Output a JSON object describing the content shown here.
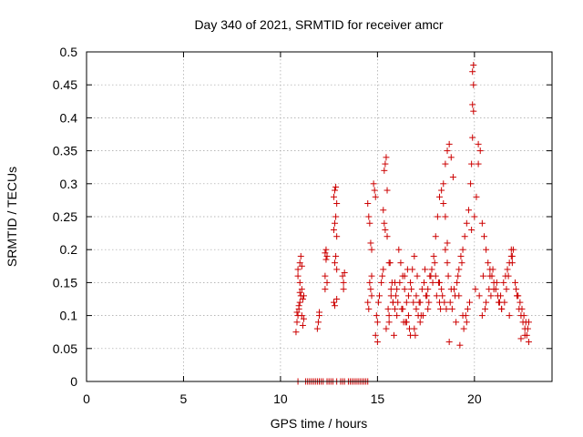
{
  "chart_data": {
    "type": "scatter",
    "title": "Day 340 of 2021, SRMTID for receiver amcr",
    "xlabel": "GPS time / hours",
    "ylabel": "SRMTID / TECUs",
    "xlim": [
      0,
      24
    ],
    "ylim": [
      0,
      0.5
    ],
    "xticks": [
      0,
      5,
      10,
      15,
      20
    ],
    "xtick_labels": [
      "0",
      "5",
      "10",
      "15",
      "20"
    ],
    "yticks": [
      0,
      0.05,
      0.1,
      0.15,
      0.2,
      0.25,
      0.3,
      0.35,
      0.4,
      0.45,
      0.5
    ],
    "ytick_labels": [
      "0",
      "0.05",
      "0.1",
      "0.15",
      "0.2",
      "0.25",
      "0.3",
      "0.35",
      "0.4",
      "0.45",
      "0.5"
    ],
    "grid": true,
    "marker": "+",
    "color": "#cc0000",
    "series": [
      {
        "name": "SRMTID",
        "x": [
          10.8,
          10.85,
          10.9,
          10.95,
          11.0,
          11.05,
          11.1,
          11.15,
          11.2,
          10.9,
          11.0,
          11.05,
          11.1,
          10.85,
          10.95,
          11.0,
          11.1,
          11.15,
          11.2,
          10.9,
          11.0,
          11.9,
          11.95,
          12.0,
          12.0,
          12.3,
          12.35,
          12.4,
          12.3,
          12.35,
          12.4,
          12.3,
          12.75,
          12.8,
          12.85,
          12.9,
          12.75,
          12.8,
          12.85,
          12.9,
          12.8,
          12.85,
          12.9,
          12.75,
          12.8,
          12.9,
          13.2,
          13.25,
          13.3,
          13.25,
          14.5,
          14.55,
          14.6,
          14.65,
          14.7,
          14.6,
          14.65,
          14.7,
          14.5,
          14.55,
          14.7,
          14.8,
          14.85,
          14.9,
          14.95,
          15.0,
          14.9,
          15.0,
          15.05,
          15.1,
          15.2,
          15.25,
          15.3,
          15.35,
          15.4,
          15.45,
          15.5,
          15.3,
          15.35,
          15.4,
          15.5,
          15.6,
          15.7,
          15.8,
          15.9,
          16.0,
          15.6,
          15.7,
          15.9,
          16.1,
          16.2,
          16.3,
          16.4,
          16.5,
          16.6,
          16.7,
          16.8,
          16.9,
          17.0,
          16.3,
          16.5,
          16.7,
          16.9,
          17.1,
          17.2,
          17.3,
          17.4,
          17.5,
          17.6,
          17.7,
          17.8,
          17.9,
          18.0,
          18.1,
          18.2,
          18.3,
          18.4,
          18.5,
          18.6,
          18.7,
          18.8,
          18.9,
          18.4,
          18.5,
          18.6,
          18.5,
          18.6,
          18.65,
          18.3,
          18.2,
          19.0,
          19.1,
          19.2,
          19.3,
          19.4,
          19.5,
          19.6,
          19.7,
          19.8,
          19.85,
          19.9,
          19.95,
          19.9,
          19.95,
          19.9,
          19.95,
          19.85,
          20.0,
          20.1,
          20.2,
          20.3,
          20.4,
          20.5,
          20.6,
          20.7,
          20.8,
          20.9,
          21.0,
          21.1,
          21.2,
          21.3,
          21.4,
          21.5,
          21.6,
          21.7,
          21.8,
          21.9,
          22.0,
          22.1,
          22.2,
          22.3,
          22.4,
          22.5,
          22.6,
          22.7,
          22.8,
          22.35,
          22.45,
          22.55,
          22.65,
          22.75,
          22.4,
          22.6,
          22.8,
          21.9,
          21.95,
          20.8,
          20.2,
          15.6,
          15.8,
          16.0,
          16.4,
          16.6,
          17.0,
          17.2,
          17.6,
          18.0,
          18.2,
          18.8,
          19.2,
          19.4,
          19.6,
          20.4,
          20.6,
          21.0,
          21.4,
          21.8,
          22.2,
          15.65,
          15.75,
          16.05,
          16.25,
          16.45,
          16.85,
          17.05,
          17.45,
          17.85,
          18.05,
          18.45,
          18.85,
          19.05,
          19.45,
          19.65,
          20.05,
          20.45,
          20.85,
          21.25,
          21.65,
          15.55,
          15.95,
          16.15,
          16.55,
          16.75,
          17.15,
          17.35,
          17.55,
          17.75,
          17.95,
          18.15,
          18.35,
          18.55,
          18.75,
          18.95,
          19.15,
          19.35,
          19.55,
          19.75,
          20.25,
          20.55,
          20.75,
          20.95,
          21.15,
          21.35,
          21.55,
          21.75,
          21.95,
          22.15,
          22.25,
          15.45,
          15.85,
          16.35,
          16.65,
          16.95,
          17.25,
          17.65,
          18.25,
          18.7,
          19.25,
          10.9,
          11.3,
          11.4,
          11.5,
          11.6,
          11.7,
          11.8,
          11.9,
          12.0,
          12.1,
          12.2,
          12.4,
          12.5,
          12.6,
          12.7,
          12.9,
          13.1,
          13.2,
          13.3,
          13.5,
          13.6,
          13.7,
          13.8,
          13.9,
          14.0,
          14.1,
          14.2,
          14.3,
          14.4,
          14.5
        ],
        "y": [
          0.075,
          0.09,
          0.1,
          0.11,
          0.12,
          0.13,
          0.1,
          0.085,
          0.095,
          0.17,
          0.18,
          0.19,
          0.175,
          0.105,
          0.115,
          0.135,
          0.14,
          0.125,
          0.13,
          0.16,
          0.15,
          0.08,
          0.09,
          0.1,
          0.105,
          0.195,
          0.2,
          0.15,
          0.16,
          0.185,
          0.19,
          0.14,
          0.28,
          0.29,
          0.295,
          0.27,
          0.23,
          0.24,
          0.25,
          0.22,
          0.18,
          0.19,
          0.17,
          0.12,
          0.115,
          0.125,
          0.16,
          0.15,
          0.165,
          0.14,
          0.27,
          0.25,
          0.24,
          0.21,
          0.2,
          0.15,
          0.14,
          0.13,
          0.12,
          0.11,
          0.16,
          0.3,
          0.29,
          0.28,
          0.1,
          0.09,
          0.07,
          0.06,
          0.12,
          0.13,
          0.15,
          0.16,
          0.17,
          0.32,
          0.33,
          0.34,
          0.29,
          0.26,
          0.24,
          0.23,
          0.22,
          0.18,
          0.14,
          0.12,
          0.11,
          0.1,
          0.09,
          0.13,
          0.15,
          0.2,
          0.18,
          0.16,
          0.14,
          0.12,
          0.1,
          0.15,
          0.17,
          0.19,
          0.13,
          0.11,
          0.09,
          0.07,
          0.08,
          0.1,
          0.12,
          0.14,
          0.15,
          0.13,
          0.11,
          0.16,
          0.17,
          0.19,
          0.22,
          0.25,
          0.28,
          0.29,
          0.3,
          0.33,
          0.35,
          0.36,
          0.34,
          0.31,
          0.27,
          0.25,
          0.21,
          0.2,
          0.18,
          0.16,
          0.14,
          0.12,
          0.13,
          0.15,
          0.17,
          0.19,
          0.2,
          0.22,
          0.24,
          0.26,
          0.3,
          0.33,
          0.37,
          0.41,
          0.42,
          0.48,
          0.47,
          0.45,
          0.23,
          0.25,
          0.28,
          0.33,
          0.35,
          0.24,
          0.22,
          0.2,
          0.18,
          0.17,
          0.16,
          0.15,
          0.14,
          0.13,
          0.12,
          0.11,
          0.15,
          0.16,
          0.17,
          0.18,
          0.19,
          0.2,
          0.15,
          0.13,
          0.11,
          0.1,
          0.09,
          0.08,
          0.07,
          0.06,
          0.12,
          0.11,
          0.1,
          0.09,
          0.08,
          0.065,
          0.07,
          0.09,
          0.2,
          0.19,
          0.16,
          0.36,
          0.1,
          0.12,
          0.14,
          0.16,
          0.13,
          0.11,
          0.09,
          0.14,
          0.16,
          0.15,
          0.14,
          0.13,
          0.1,
          0.09,
          0.1,
          0.12,
          0.14,
          0.11,
          0.1,
          0.13,
          0.18,
          0.15,
          0.12,
          0.11,
          0.09,
          0.12,
          0.16,
          0.17,
          0.15,
          0.13,
          0.12,
          0.11,
          0.09,
          0.08,
          0.11,
          0.14,
          0.16,
          0.13,
          0.12,
          0.14,
          0.11,
          0.13,
          0.15,
          0.17,
          0.14,
          0.12,
          0.1,
          0.13,
          0.16,
          0.18,
          0.15,
          0.13,
          0.11,
          0.12,
          0.14,
          0.16,
          0.18,
          0.1,
          0.12,
          0.13,
          0.11,
          0.14,
          0.17,
          0.15,
          0.13,
          0.12,
          0.16,
          0.18,
          0.14,
          0.13,
          0.08,
          0.07,
          0.09,
          0.08,
          0.07,
          0.1,
          0.12,
          0.11,
          0.06,
          0.055,
          0,
          0,
          0,
          0,
          0,
          0,
          0,
          0,
          0,
          0,
          0,
          0,
          0,
          0,
          0,
          0,
          0,
          0,
          0,
          0,
          0,
          0,
          0,
          0,
          0,
          0,
          0,
          0,
          0,
          0
        ]
      }
    ]
  }
}
